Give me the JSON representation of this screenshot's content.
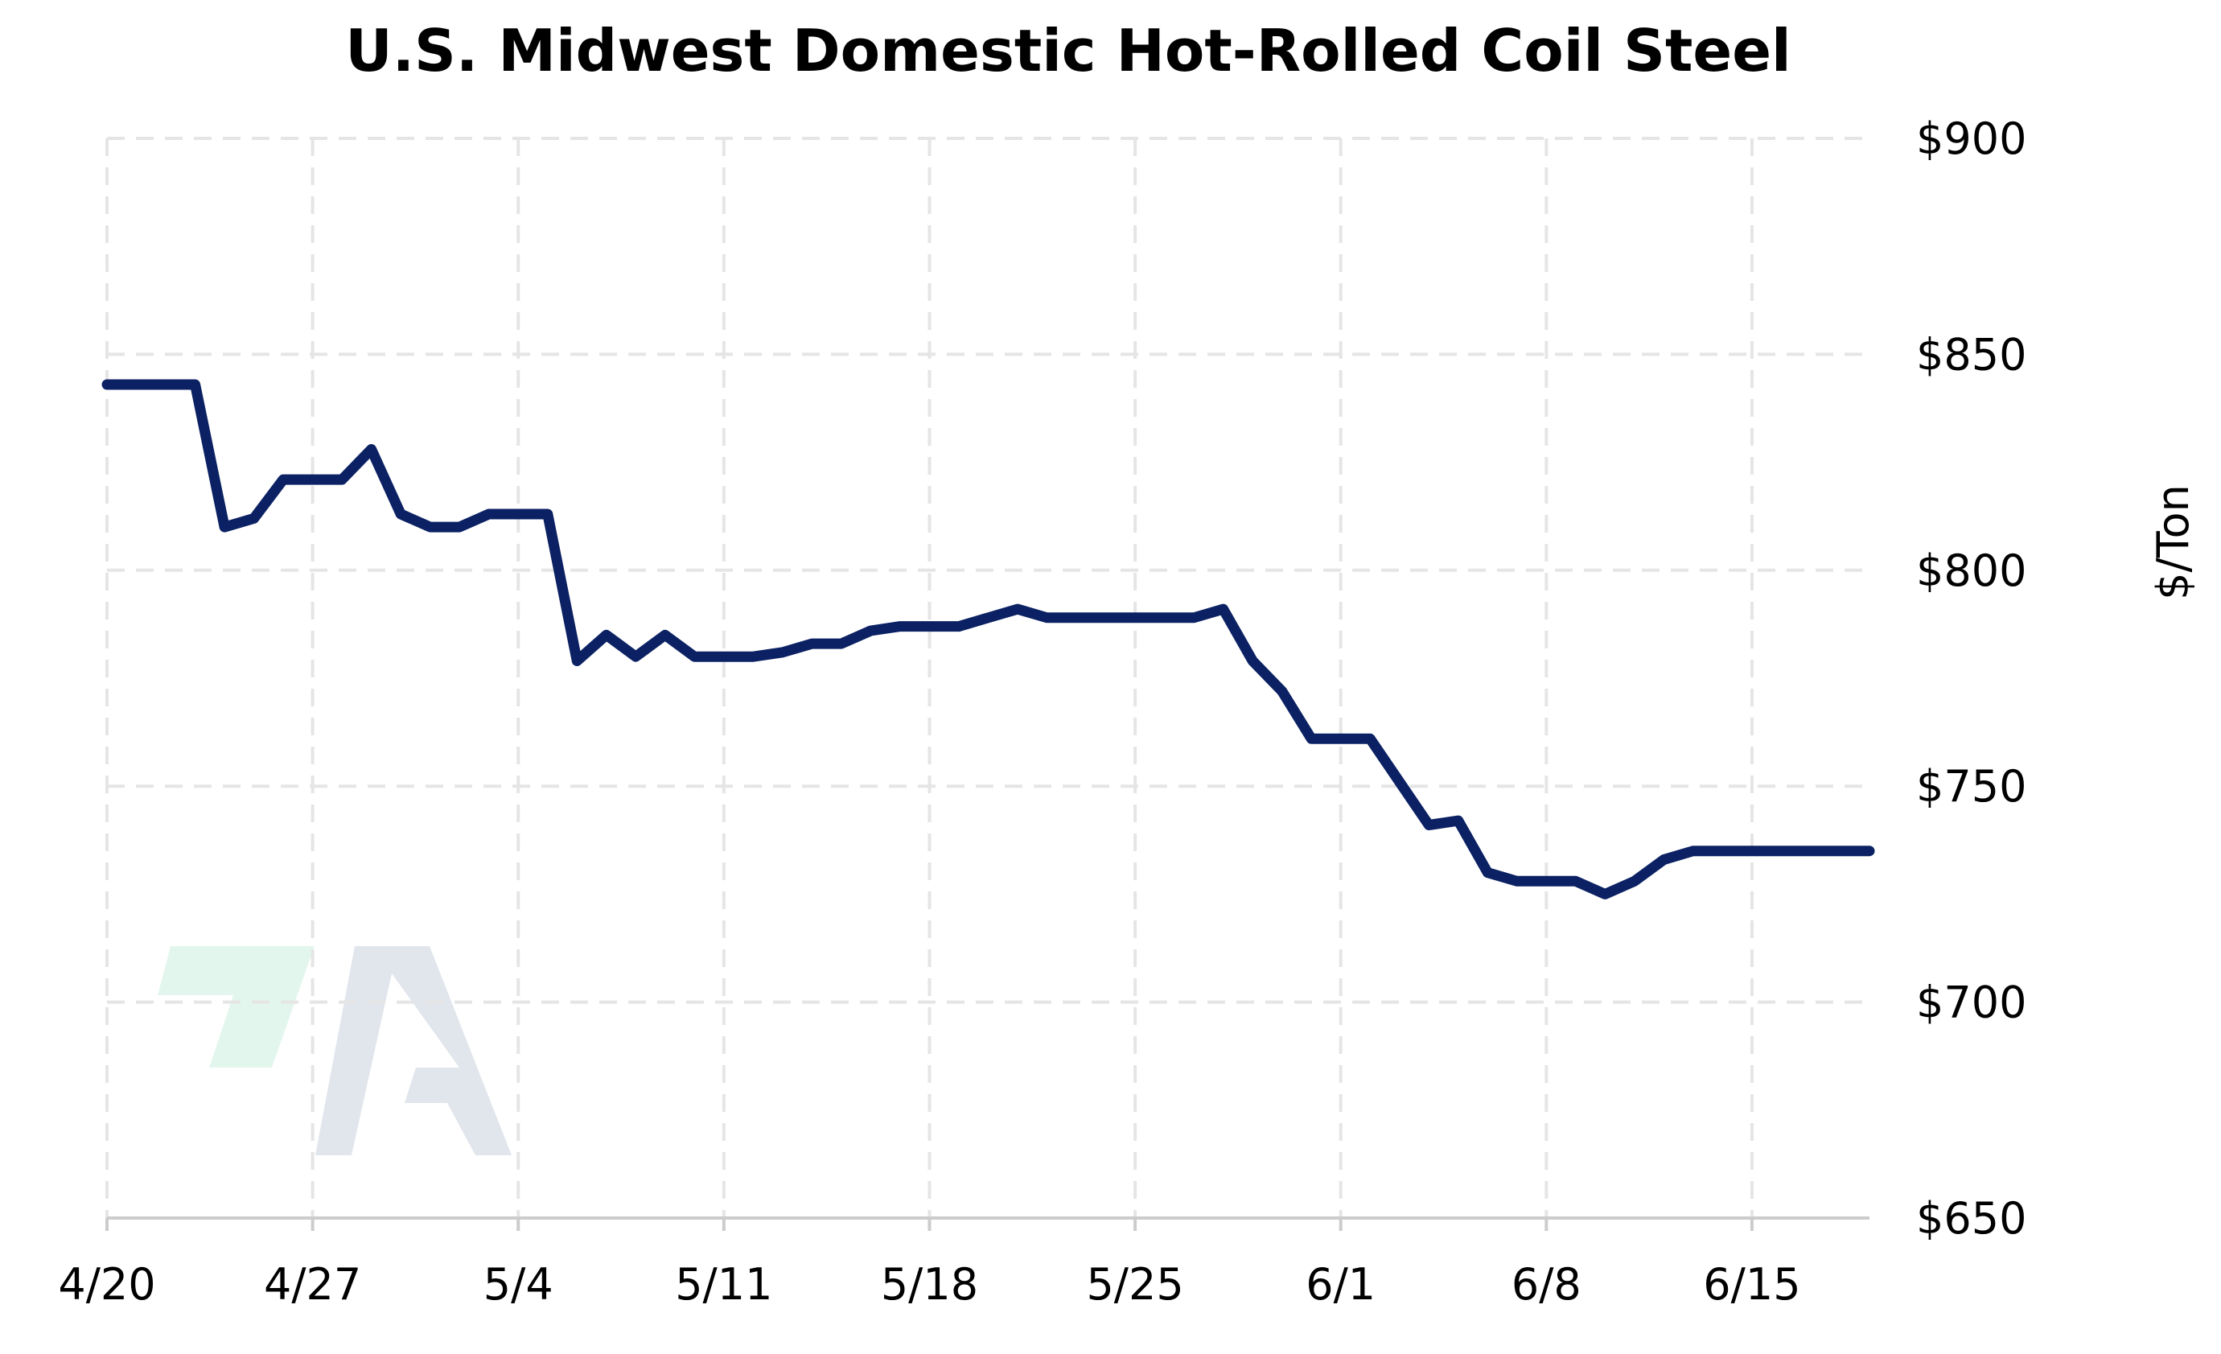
{
  "chart_data": {
    "type": "line",
    "title": "U.S. Midwest Domestic Hot-Rolled Coil Steel",
    "xlabel": "",
    "ylabel": "$/Ton",
    "y_axis_side": "right",
    "ylim": [
      650,
      900
    ],
    "y_ticks": [
      650,
      700,
      750,
      800,
      850,
      900
    ],
    "y_tick_labels": [
      "$650",
      "$700",
      "$750",
      "$800",
      "$850",
      "$900"
    ],
    "x_ticks": [
      "4/20",
      "4/27",
      "5/4",
      "5/11",
      "5/18",
      "5/25",
      "6/1",
      "6/8",
      "6/15"
    ],
    "grid": true,
    "legend": "none",
    "line_color": "#0b2163",
    "x": [
      "4/20",
      "4/21",
      "4/22",
      "4/23",
      "4/24",
      "4/25",
      "4/26",
      "4/27",
      "4/28",
      "4/29",
      "4/30",
      "5/1",
      "5/2",
      "5/3",
      "5/4",
      "5/5",
      "5/6",
      "5/7",
      "5/8",
      "5/9",
      "5/10",
      "5/11",
      "5/12",
      "5/13",
      "5/14",
      "5/15",
      "5/16",
      "5/17",
      "5/18",
      "5/19",
      "5/20",
      "5/21",
      "5/22",
      "5/23",
      "5/24",
      "5/25",
      "5/26",
      "5/27",
      "5/28",
      "5/29",
      "5/30",
      "5/31",
      "6/1",
      "6/2",
      "6/3",
      "6/4",
      "6/5",
      "6/6",
      "6/7",
      "6/8",
      "6/9",
      "6/10",
      "6/11",
      "6/12",
      "6/13",
      "6/14",
      "6/15",
      "6/16",
      "6/17",
      "6/18",
      "6/19"
    ],
    "series": [
      {
        "values": [
          843,
          843,
          843,
          843,
          810,
          812,
          821,
          821,
          821,
          828,
          813,
          810,
          810,
          813,
          813,
          813,
          779,
          785,
          780,
          785,
          780,
          780,
          780,
          781,
          783,
          783,
          786,
          787,
          787,
          787,
          789,
          791,
          789,
          789,
          789,
          789,
          789,
          789,
          791,
          779,
          772,
          761,
          761,
          761,
          751,
          741,
          742,
          730,
          728,
          728,
          728,
          725,
          728,
          733,
          735,
          735,
          735,
          735,
          735,
          735,
          735
        ]
      }
    ]
  },
  "watermark": {
    "accent_color": "#e3f6ee",
    "letter_color": "#e1e5ec"
  }
}
